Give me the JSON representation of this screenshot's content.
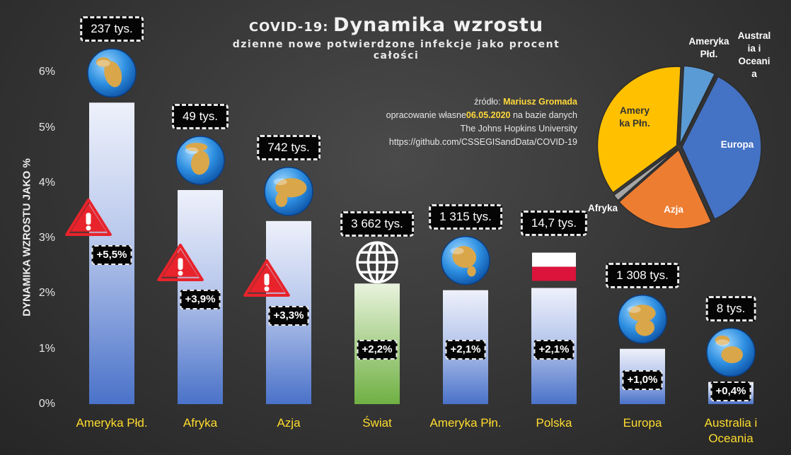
{
  "title": {
    "prefix": "COVID-19:",
    "main": "Dynamika wzrostu"
  },
  "subtitle": "dzienne nowe potwierdzone infekcje jako procent całości",
  "source": {
    "line1_label": "źródło:",
    "line1_value": "Mariusz Gromada",
    "line2_before": "opracowanie własne",
    "line2_date": "06.05.2020",
    "line2_after": "na bazie danych",
    "line3": "The Johns Hopkins University",
    "line4": "https://github.com/CSSEGISandData/COVID-19"
  },
  "chart_data": [
    {
      "type": "bar",
      "ylabel": "DYNAMIKA WZROSTU JAKO %",
      "ylim": [
        0,
        6
      ],
      "yticks": [
        "0%",
        "1%",
        "2%",
        "3%",
        "4%",
        "5%",
        "6%"
      ],
      "grid": false,
      "categories": [
        "Ameryka Płd.",
        "Afryka",
        "Azja",
        "Świat",
        "Ameryka Płn.",
        "Polska",
        "Europa",
        "Australia i Oceania"
      ],
      "category_lines": [
        [
          "Ameryka Płd."
        ],
        [
          "Afryka"
        ],
        [
          "Azja"
        ],
        [
          "Świat"
        ],
        [
          "Ameryka Płn."
        ],
        [
          "Polska"
        ],
        [
          "Europa"
        ],
        [
          "Australia i",
          "Oceania"
        ]
      ],
      "values": [
        5.45,
        3.87,
        3.31,
        2.18,
        2.06,
        2.1,
        1.0,
        0.4
      ],
      "value_labels": [
        "+5,5%",
        "+3,9%",
        "+3,3%",
        "+2,2%",
        "+2,1%",
        "+2,1%",
        "+1,0%",
        "+0,4%"
      ],
      "total_labels": [
        "237 tys.",
        "49 tys.",
        "742 tys.",
        "3 662 tys.",
        "1 315 tys.",
        "14,7 tys.",
        "1 308 tys.",
        "8 tys."
      ],
      "warning": [
        true,
        true,
        true,
        false,
        false,
        false,
        false,
        false
      ],
      "icons": [
        "globe-americas-icon",
        "globe-africa-icon",
        "globe-asia-icon",
        "world-icon",
        "globe-north-america-icon",
        "poland-flag-icon",
        "globe-europe-icon",
        "globe-australia-icon"
      ],
      "colors": {
        "bar_top": "#eef1fb",
        "bar_bottom": "#4a72c9",
        "world_top": "#e9f3dd",
        "world_bottom": "#6fb043",
        "category_text": "#ffdc2e",
        "warning": "#e8232b"
      }
    },
    {
      "type": "pie",
      "labels": [
        "Ameryka Płd.",
        "Austral ia i Oceani a",
        "Europa",
        "Azja",
        "Afryka",
        "Amery ka Płn."
      ],
      "label_lines": [
        [
          "Ameryka",
          "Płd."
        ],
        [
          "Austral",
          "ia i",
          "Oceani",
          "a"
        ],
        [
          "Europa"
        ],
        [
          "Azja"
        ],
        [
          "Afryka"
        ],
        [
          "Amery",
          "ka Płn."
        ]
      ],
      "values": [
        237,
        8,
        1308,
        742,
        49,
        1315
      ],
      "colors": [
        "#5b9bd5",
        "#9e9e9e",
        "#4472c4",
        "#ed7d31",
        "#a5a5a5",
        "#ffc000"
      ]
    }
  ]
}
